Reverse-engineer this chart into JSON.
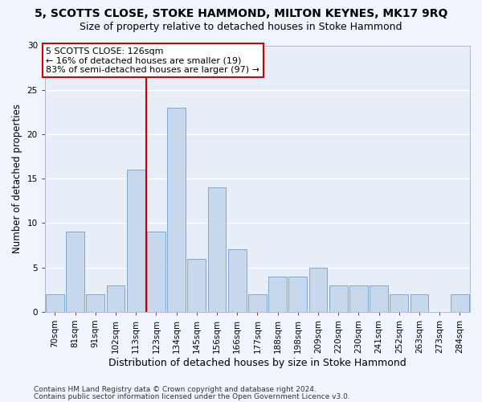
{
  "title1": "5, SCOTTS CLOSE, STOKE HAMMOND, MILTON KEYNES, MK17 9RQ",
  "title2": "Size of property relative to detached houses in Stoke Hammond",
  "xlabel": "Distribution of detached houses by size in Stoke Hammond",
  "ylabel": "Number of detached properties",
  "categories": [
    "70sqm",
    "81sqm",
    "91sqm",
    "102sqm",
    "113sqm",
    "123sqm",
    "134sqm",
    "145sqm",
    "156sqm",
    "166sqm",
    "177sqm",
    "188sqm",
    "198sqm",
    "209sqm",
    "220sqm",
    "230sqm",
    "241sqm",
    "252sqm",
    "263sqm",
    "273sqm",
    "284sqm"
  ],
  "values": [
    2,
    9,
    2,
    3,
    16,
    9,
    23,
    6,
    14,
    7,
    2,
    4,
    4,
    5,
    3,
    3,
    3,
    2,
    2,
    0,
    2
  ],
  "bar_color": "#c8d8ec",
  "bar_edge_color": "#7fa8cc",
  "vline_color": "#cc0000",
  "vline_xidx": 4.5,
  "annotation_line1": "5 SCOTTS CLOSE: 126sqm",
  "annotation_line2": "← 16% of detached houses are smaller (19)",
  "annotation_line3": "83% of semi-detached houses are larger (97) →",
  "ylim": [
    0,
    30
  ],
  "yticks": [
    0,
    5,
    10,
    15,
    20,
    25,
    30
  ],
  "footer1": "Contains HM Land Registry data © Crown copyright and database right 2024.",
  "footer2": "Contains public sector information licensed under the Open Government Licence v3.0.",
  "fig_bg_color": "#f0f4fc",
  "axes_bg_color": "#e8eef8",
  "grid_color": "#ffffff",
  "title1_fontsize": 10,
  "title2_fontsize": 9,
  "xlabel_fontsize": 9,
  "ylabel_fontsize": 8.5,
  "tick_fontsize": 7.5,
  "annotation_fontsize": 8,
  "footer_fontsize": 6.5
}
